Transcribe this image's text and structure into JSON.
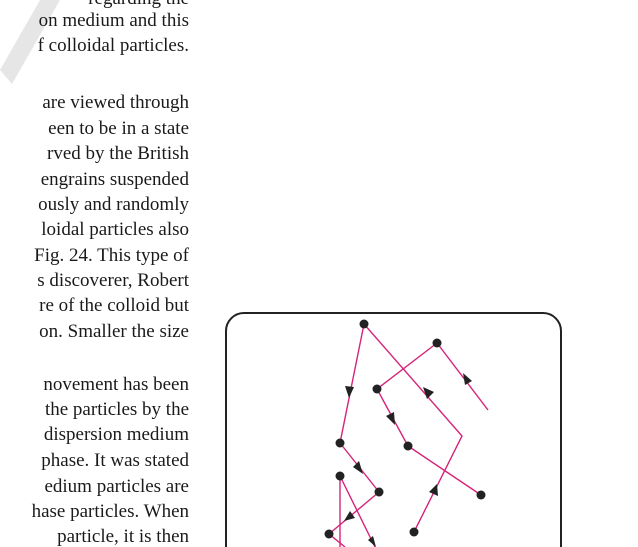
{
  "lines": [
    "regarding the",
    "on medium and this",
    "f colloidal particles.",
    "are viewed through",
    "een to be in a state",
    "rved by the British",
    "engrains suspended",
    "ously and randomly",
    "loidal particles also",
    "Fig. 24. This type of",
    "s discoverer, Robert",
    "re of the colloid but",
    "on. Smaller the size",
    "novement has been",
    "the particles by the",
    "dispersion medium",
    "phase. It was stated",
    "edium particles are",
    "hase particles. When",
    "particle, it is then"
  ]
}
